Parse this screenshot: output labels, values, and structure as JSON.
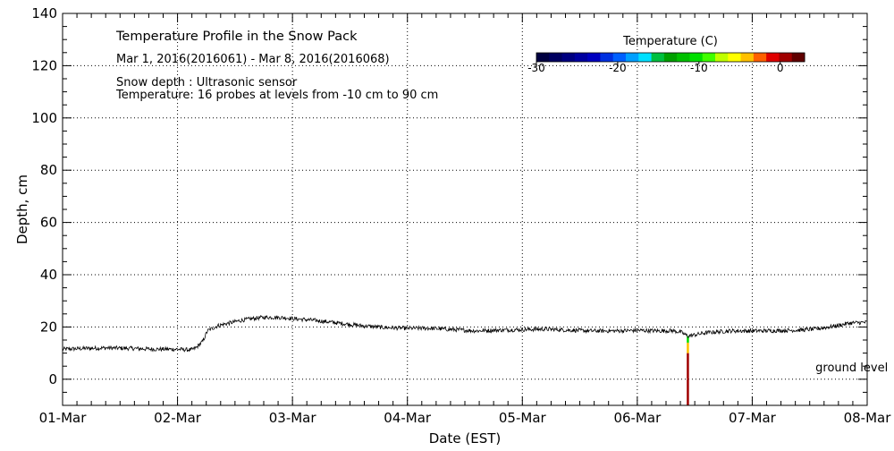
{
  "chart_data": {
    "type": "line",
    "title": "Temperature Profile in the Snow Pack",
    "subtitle": "Mar  1, 2016(2016061) - Mar  8, 2016(2016068)",
    "notes": [
      "Snow depth : Ultrasonic sensor",
      "Temperature: 16 probes at levels from -10 cm to 90 cm"
    ],
    "xlabel": "Date (EST)",
    "ylabel": "Depth, cm",
    "xlim": [
      0,
      7
    ],
    "ylim": [
      -10,
      140
    ],
    "x_tick_labels": [
      "01-Mar",
      "02-Mar",
      "03-Mar",
      "04-Mar",
      "05-Mar",
      "06-Mar",
      "07-Mar",
      "08-Mar"
    ],
    "y_ticks": [
      0,
      20,
      40,
      60,
      80,
      100,
      120,
      140
    ],
    "y_tick_labels": [
      "0",
      "20",
      "40",
      "60",
      "80",
      "100",
      "120",
      "140"
    ],
    "grid": true,
    "x_units": "days since 01-Mar",
    "snow_depth_series": {
      "x": [
        0.0,
        0.2,
        0.4,
        0.6,
        0.8,
        1.0,
        1.12,
        1.16,
        1.22,
        1.26,
        1.35,
        1.45,
        1.55,
        1.65,
        1.75,
        1.85,
        1.95,
        2.0,
        2.2,
        2.4,
        2.6,
        2.8,
        3.0,
        3.2,
        3.4,
        3.6,
        3.8,
        4.0,
        4.2,
        4.4,
        4.6,
        4.8,
        5.0,
        5.2,
        5.3,
        5.38,
        5.44,
        5.5,
        5.6,
        5.8,
        6.0,
        6.2,
        6.4,
        6.55,
        6.7,
        6.85,
        7.0
      ],
      "y": [
        11.5,
        11.8,
        12.0,
        11.8,
        11.5,
        11.5,
        11.2,
        12.0,
        14.5,
        18.5,
        20.5,
        21.5,
        22.5,
        23.2,
        23.7,
        23.7,
        23.5,
        23.2,
        22.5,
        21.5,
        20.5,
        19.8,
        19.5,
        19.5,
        19.0,
        18.5,
        18.8,
        19.0,
        19.2,
        18.8,
        18.5,
        18.5,
        18.7,
        18.5,
        18.6,
        18.0,
        16.5,
        17.0,
        17.8,
        18.5,
        18.5,
        18.6,
        18.8,
        19.2,
        20.2,
        21.5,
        21.8
      ]
    },
    "temperature_profile": {
      "x": 5.44,
      "levels": [
        {
          "from": -10,
          "to": 0,
          "temp": 1
        },
        {
          "from": 0,
          "to": 10,
          "temp": 0
        },
        {
          "from": 10,
          "to": 14,
          "temp": -4
        },
        {
          "from": 14,
          "to": 16.5,
          "temp": -10
        }
      ]
    },
    "annotations": [
      {
        "text": "ground level",
        "x": 6.55,
        "y": 3
      }
    ],
    "colorbar": {
      "title": "Temperature (C)",
      "range": [
        -30,
        3
      ],
      "tick_values": [
        -30,
        -20,
        -10,
        0
      ],
      "tick_labels": [
        "-30",
        "-20",
        "-10",
        "0"
      ],
      "colors": [
        "#000040",
        "#000060",
        "#000080",
        "#0000a0",
        "#0000c0",
        "#0030e0",
        "#0060ff",
        "#00a0ff",
        "#00e0ff",
        "#00c040",
        "#00a000",
        "#00c000",
        "#00e000",
        "#40ff00",
        "#c0ff00",
        "#ffff00",
        "#ffc000",
        "#ff6000",
        "#e00000",
        "#a00000",
        "#600000"
      ]
    }
  }
}
